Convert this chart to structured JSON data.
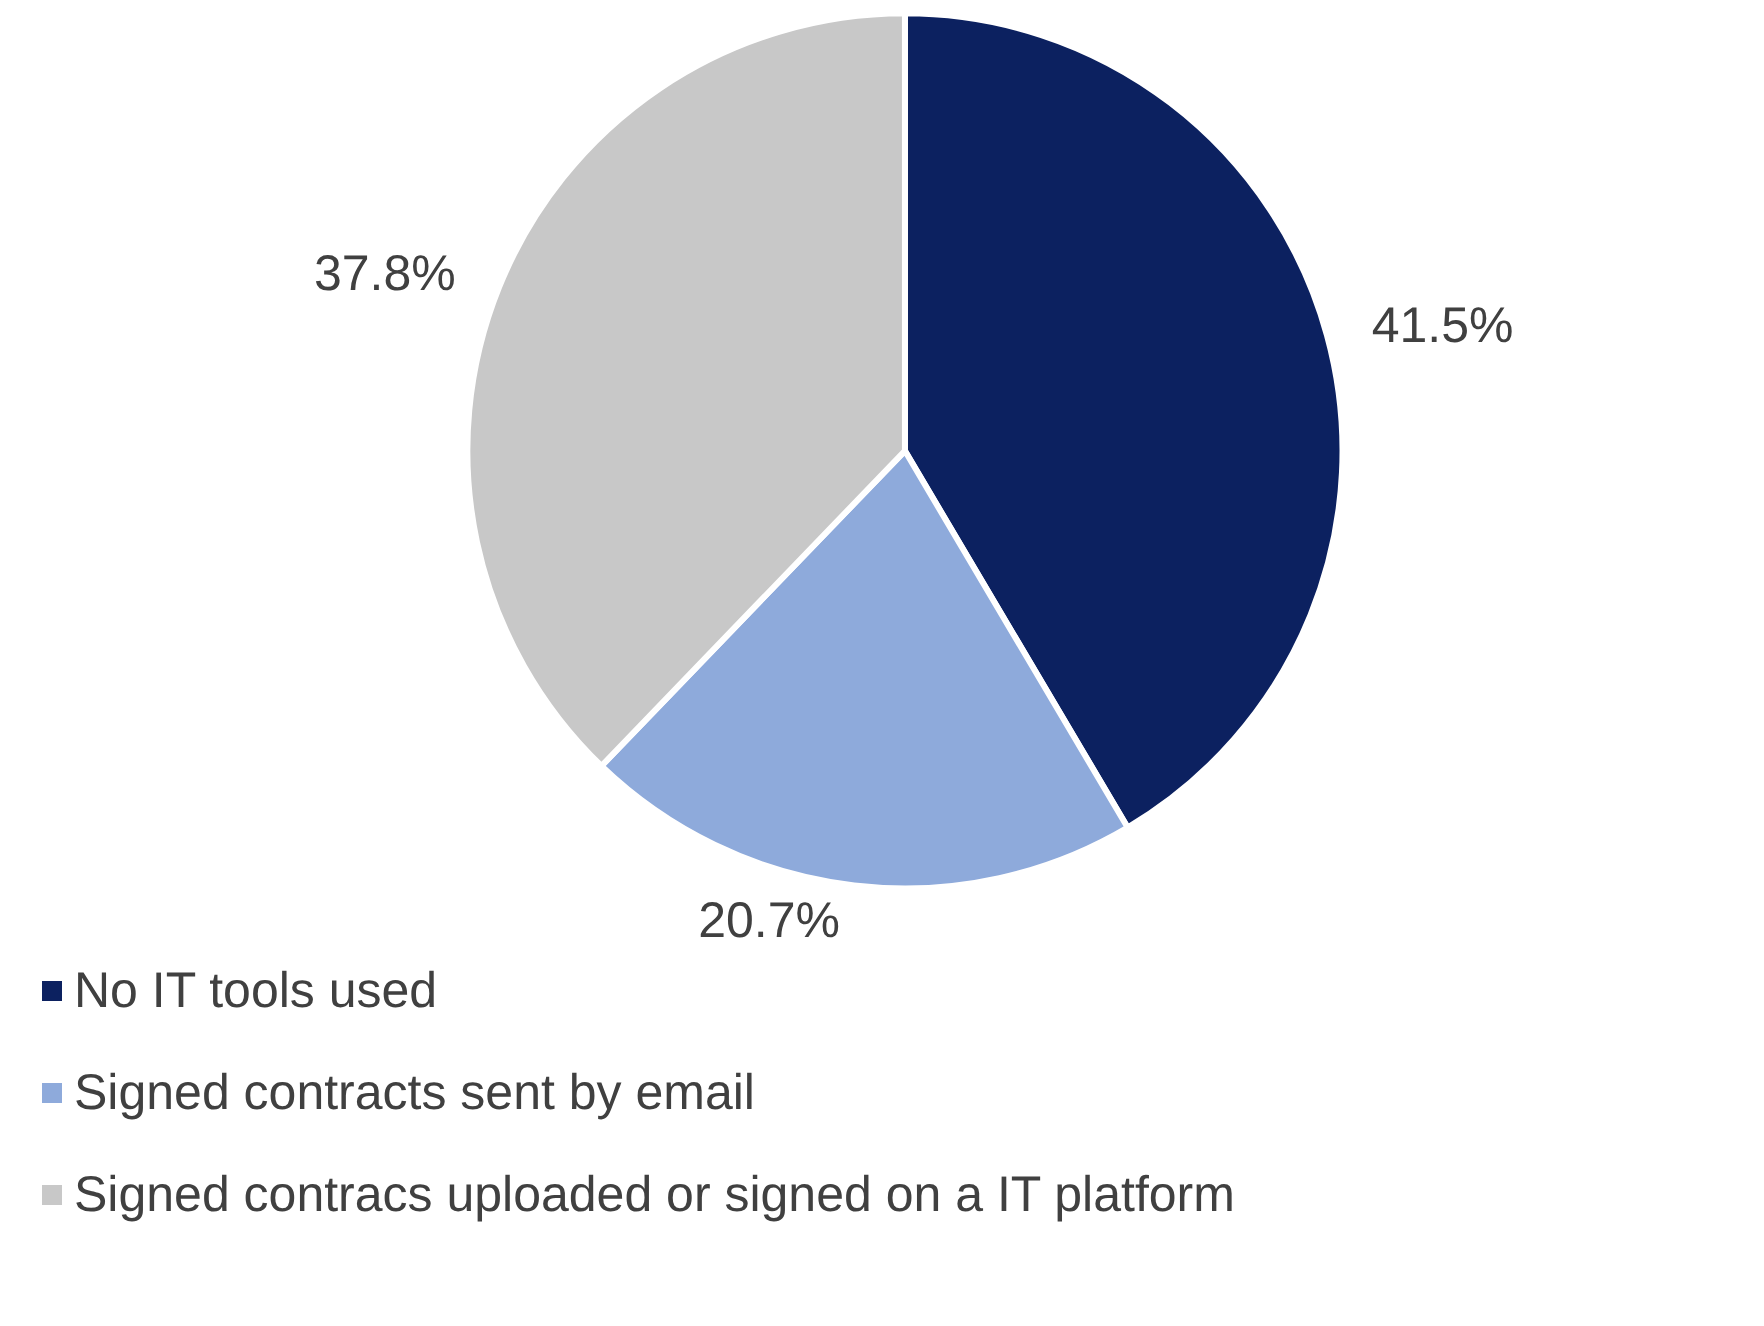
{
  "chart_data": {
    "type": "pie",
    "categories": [
      "No IT tools used",
      "Signed contracts sent by email",
      "Signed contracs uploaded or signed on a IT platform"
    ],
    "values": [
      41.5,
      20.7,
      37.8
    ],
    "colors": [
      "#0c2160",
      "#8eaadb",
      "#c8c8c8"
    ],
    "value_labels": [
      "41.5%",
      "20.7%",
      "37.8%"
    ],
    "legend": "bottom left"
  }
}
